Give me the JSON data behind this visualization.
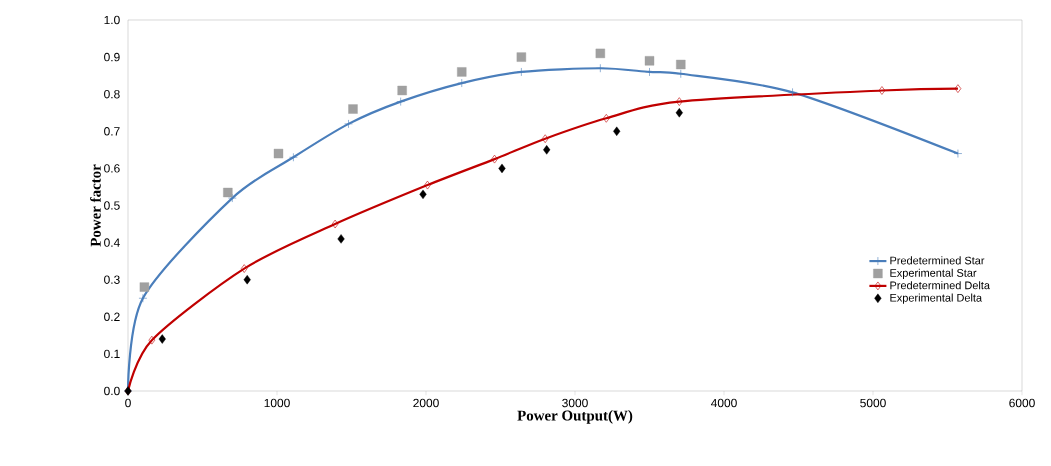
{
  "chart_data": {
    "type": "line",
    "xlabel": "Power Output(W)",
    "ylabel": "Power factor",
    "xlim": [
      0,
      6000
    ],
    "ylim": [
      0,
      1
    ],
    "xticks": [
      0,
      1000,
      2000,
      3000,
      4000,
      5000,
      6000
    ],
    "yticks": [
      {
        "value": 0,
        "label": "0.0"
      },
      {
        "value": 0.1,
        "label": "0.1"
      },
      {
        "value": 0.2,
        "label": "0.2"
      },
      {
        "value": 0.3,
        "label": "0.3"
      },
      {
        "value": 0.4,
        "label": "0.4"
      },
      {
        "value": 0.5,
        "label": "0.5"
      },
      {
        "value": 0.6,
        "label": "0.6"
      },
      {
        "value": 0.7,
        "label": "0.7"
      },
      {
        "value": 0.8,
        "label": "0.8"
      },
      {
        "value": 0.9,
        "label": "0.9"
      },
      {
        "value": 1,
        "label": "1.0"
      }
    ],
    "grid": false,
    "legend": "right",
    "line_style": "solid",
    "series": [
      {
        "name": "Predetermined Star",
        "marker": "cross",
        "color": "#4a7ebb",
        "x": [
          0,
          100,
          700,
          1110,
          1480,
          1830,
          2240,
          2640,
          3170,
          3500,
          3710,
          4460,
          5570
        ],
        "values": [
          0,
          0.25,
          0.52,
          0.63,
          0.72,
          0.78,
          0.83,
          0.86,
          0.87,
          0.86,
          0.855,
          0.805,
          0.64
        ]
      },
      {
        "name": "Experimental Star",
        "type": "scatter",
        "marker": "square",
        "color": "#a0a0a0",
        "x": [
          110,
          670,
          1010,
          1510,
          1840,
          2240,
          2640,
          3170,
          3500,
          3710
        ],
        "values": [
          0.28,
          0.535,
          0.64,
          0.76,
          0.81,
          0.86,
          0.9,
          0.91,
          0.89,
          0.88
        ]
      },
      {
        "name": "Predetermined Delta",
        "marker": "diamond",
        "color": "#c00000",
        "x": [
          0,
          160,
          780,
          1390,
          2010,
          2460,
          2800,
          3210,
          3700,
          5060,
          5570
        ],
        "values": [
          0,
          0.137,
          0.33,
          0.45,
          0.555,
          0.625,
          0.68,
          0.735,
          0.78,
          0.81,
          0.815
        ]
      },
      {
        "name": "Experimental Delta",
        "type": "scatter",
        "marker": "diamond",
        "color": "#000000",
        "x": [
          0,
          230,
          800,
          1430,
          1980,
          2510,
          2810,
          3280,
          3700
        ],
        "values": [
          0,
          0.14,
          0.3,
          0.41,
          0.53,
          0.6,
          0.65,
          0.7,
          0.75
        ]
      }
    ]
  }
}
